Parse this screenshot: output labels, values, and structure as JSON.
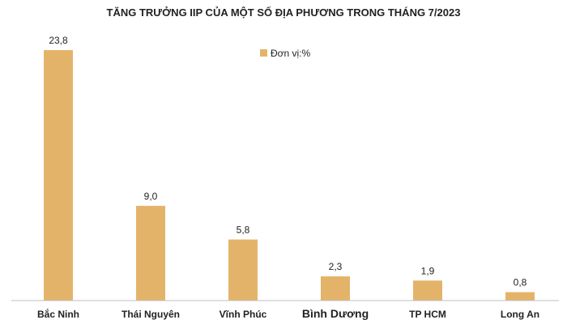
{
  "chart_data": {
    "type": "bar",
    "title": "TĂNG TRƯỞNG IIP CỦA MỘT SỐ ĐỊA PHƯƠNG TRONG THÁNG 7/2023",
    "categories": [
      "Bắc Ninh",
      "Thái Nguyên",
      "Vĩnh Phúc",
      "Bình Dương",
      "TP HCM",
      "Long An"
    ],
    "values": [
      23.8,
      9.0,
      5.8,
      2.3,
      1.9,
      0.8
    ],
    "value_labels": [
      "23,8",
      "9,0",
      "5,8",
      "2,3",
      "1,9",
      "0,8"
    ],
    "series": [
      {
        "name": "Đơn vị:%",
        "values": [
          23.8,
          9.0,
          5.8,
          2.3,
          1.9,
          0.8
        ]
      }
    ],
    "legend": "top-center",
    "grid": false,
    "ylim": [
      0,
      25
    ],
    "colors": {
      "bar": "#E4B36A",
      "axis": "#BFBFBF",
      "text": "#222222"
    }
  }
}
